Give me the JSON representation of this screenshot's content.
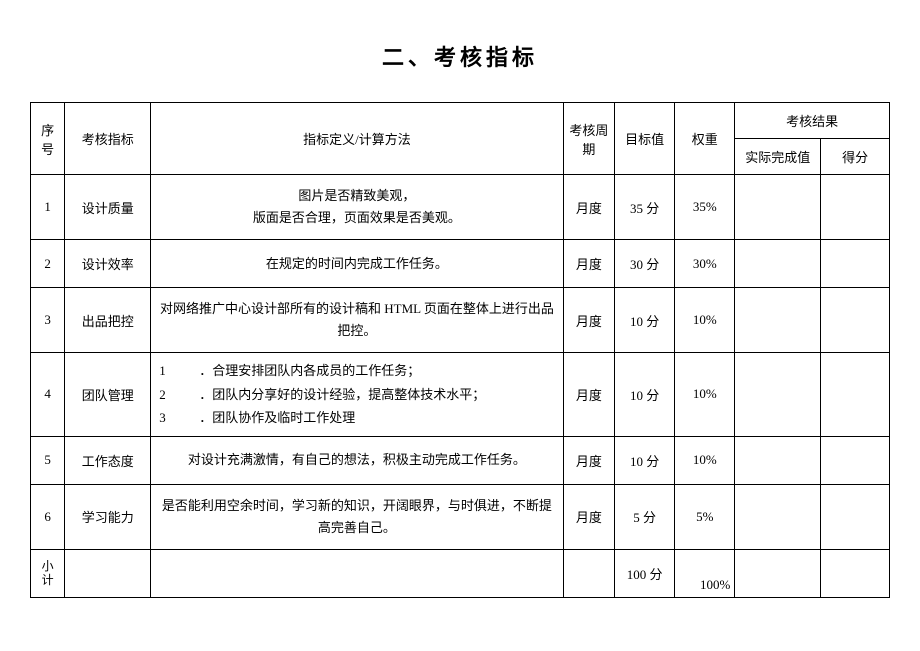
{
  "title": "二、考核指标",
  "table": {
    "headers": {
      "idx": "序号",
      "name": "考核指标",
      "definition": "指标定义/计算方法",
      "cycle": "考核周期",
      "target": "目标值",
      "weight": "权重",
      "result_group": "考核结果",
      "actual": "实际完成值",
      "score": "得分"
    },
    "rows": [
      {
        "idx": "1",
        "name": "设计质量",
        "def_lines": [
          "图片是否精致美观，",
          "版面是否合理，页面效果是否美观。"
        ],
        "cycle": "月度",
        "target": "35 分",
        "weight": "35%"
      },
      {
        "idx": "2",
        "name": "设计效率",
        "def_lines": [
          "在规定的时间内完成工作任务。"
        ],
        "cycle": "月度",
        "target": "30 分",
        "weight": "30%"
      },
      {
        "idx": "3",
        "name": "出品把控",
        "def_lines": [
          "对网络推广中心设计部所有的设计稿和 HTML 页面在整体上进行出品把控。"
        ],
        "cycle": "月度",
        "target": "10 分",
        "weight": "10%"
      },
      {
        "idx": "4",
        "name": "团队管理",
        "def_list": [
          {
            "num": "1",
            "text": "．合理安排团队内各成员的工作任务；"
          },
          {
            "num": "2",
            "text": "．团队内分享好的设计经验，提高整体技术水平；"
          },
          {
            "num": "3",
            "text": "．团队协作及临时工作处理"
          }
        ],
        "cycle": "月度",
        "target": "10 分",
        "weight": "10%"
      },
      {
        "idx": "5",
        "name": "工作态度",
        "def_lines": [
          "对设计充满激情，有自己的想法，积极主动完成工作任务。"
        ],
        "cycle": "月度",
        "target": "10 分",
        "weight": "10%"
      },
      {
        "idx": "6",
        "name": "学习能力",
        "def_lines": [
          "是否能利用空余时间，学习新的知识，开阔眼界，与时俱进，不断提高完善自己。"
        ],
        "cycle": "月度",
        "target": "5 分",
        "weight": "5%"
      }
    ],
    "subtotal": {
      "label_top": "小",
      "label_bottom": "计",
      "target": "100 分",
      "weight": "100%"
    }
  }
}
